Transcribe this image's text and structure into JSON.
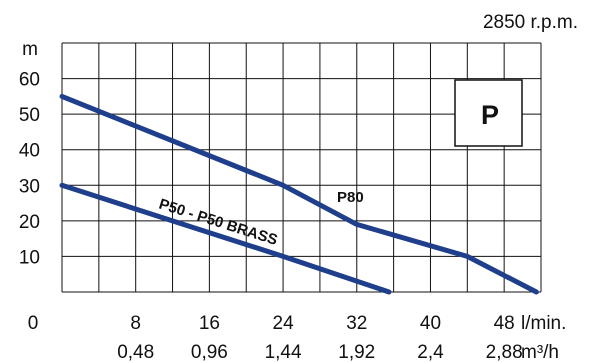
{
  "chart_data": {
    "type": "line",
    "title": "2850 r.p.m.",
    "badge": "P",
    "ylabel": "m",
    "y_ticks": [
      "10",
      "20",
      "30",
      "40",
      "50",
      "60"
    ],
    "x_origin_label": "0",
    "x_ticks": [
      {
        "lmin": "8",
        "m3h": "0,48"
      },
      {
        "lmin": "16",
        "m3h": "0,96"
      },
      {
        "lmin": "24",
        "m3h": "1,44"
      },
      {
        "lmin": "32",
        "m3h": "1,92"
      },
      {
        "lmin": "40",
        "m3h": "2,4"
      },
      {
        "lmin": "48",
        "m3h": "2,88"
      }
    ],
    "x_unit_1": "l/min.",
    "x_unit_2": "m³/h",
    "xlim": [
      0,
      52
    ],
    "ylim": [
      0,
      70
    ],
    "grid": true,
    "series": [
      {
        "name": "P80",
        "color": "#1f3f8c",
        "x": [
          0,
          24,
          32,
          44,
          51.5
        ],
        "y": [
          55,
          30,
          19,
          10,
          0
        ]
      },
      {
        "name": "P50 - P50 BRASS",
        "color": "#1f3f8c",
        "x": [
          0,
          24,
          35.5
        ],
        "y": [
          30,
          10,
          0
        ]
      }
    ],
    "colors": {
      "curve": "#1f3f8c",
      "badge_text": "#1f3f8c",
      "grid": "#111111"
    }
  }
}
